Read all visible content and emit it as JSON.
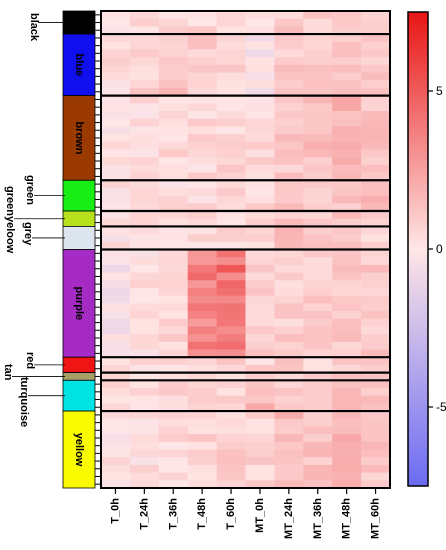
{
  "chart_data": {
    "type": "heatmap",
    "title": "",
    "xlabel": "",
    "ylabel": "",
    "columns": [
      "T_0h",
      "T_24h",
      "T_36h",
      "T_48h",
      "T_60h",
      "MT_0h",
      "MT_24h",
      "MT_36h",
      "MT_48h",
      "MT_60h"
    ],
    "color_scale": {
      "min": -7.5,
      "max": 7.5,
      "low_color": "#6b6bf2",
      "mid_color": "#ffe6e6",
      "high_color": "#e81515",
      "ticks": [
        5,
        0,
        -5
      ],
      "tick_labels": [
        "5",
        "0",
        "-5"
      ]
    },
    "modules": [
      {
        "name": "black",
        "color": "#000000",
        "rows": 3,
        "profile": [
          0.2,
          0.5,
          0.4,
          0.5,
          0.6,
          0.3,
          0.9,
          0.8,
          1.0,
          0.8
        ]
      },
      {
        "name": "blue",
        "color": "#1010ee",
        "rows": 8,
        "profile": [
          0.3,
          0.8,
          1.2,
          0.8,
          0.7,
          -0.3,
          1.0,
          0.9,
          1.2,
          0.9
        ]
      },
      {
        "name": "brown",
        "color": "#9a3a00",
        "rows": 11,
        "profile": [
          0.1,
          0.4,
          0.5,
          0.5,
          0.6,
          0.4,
          1.1,
          1.3,
          1.9,
          1.2
        ]
      },
      {
        "name": "green",
        "color": "#16ee16",
        "rows": 4,
        "profile": [
          0.2,
          0.3,
          0.3,
          0.4,
          0.5,
          0.5,
          1.2,
          1.0,
          1.3,
          2.0
        ]
      },
      {
        "name": "greenyeloow",
        "color": "#b7e01d",
        "rows": 2,
        "profile": [
          0.2,
          0.4,
          0.5,
          0.3,
          0.4,
          0.6,
          0.9,
          1.0,
          1.1,
          0.9
        ]
      },
      {
        "name": "grey",
        "color": "#dce4ee",
        "rows": 3,
        "profile": [
          0.1,
          0.3,
          0.3,
          0.3,
          0.5,
          0.3,
          1.8,
          0.8,
          1.0,
          0.7
        ]
      },
      {
        "name": "purple",
        "color": "#a52bc4",
        "rows": 14,
        "profile": [
          -0.3,
          0.2,
          0.6,
          3.6,
          4.2,
          0.7,
          0.9,
          1.0,
          1.1,
          1.0
        ]
      },
      {
        "name": "red",
        "color": "#f01515",
        "rows": 2,
        "profile": [
          0.4,
          0.5,
          0.6,
          0.7,
          0.8,
          0.5,
          1.8,
          0.8,
          0.9,
          0.8
        ]
      },
      {
        "name": "tan",
        "color": "#a8a066",
        "rows": 1,
        "profile": [
          0.5,
          0.5,
          0.6,
          0.6,
          0.7,
          0.9,
          1.1,
          1.0,
          1.1,
          1.0
        ]
      },
      {
        "name": "turquoise",
        "color": "#00e3e3",
        "rows": 4,
        "profile": [
          0.2,
          0.4,
          0.5,
          0.4,
          0.5,
          1.8,
          1.0,
          1.2,
          1.3,
          1.0
        ]
      },
      {
        "name": "yellow",
        "color": "#fafa00",
        "rows": 10,
        "profile": [
          0.1,
          0.3,
          0.5,
          0.6,
          0.8,
          0.6,
          1.5,
          1.3,
          1.7,
          1.2
        ]
      }
    ]
  }
}
